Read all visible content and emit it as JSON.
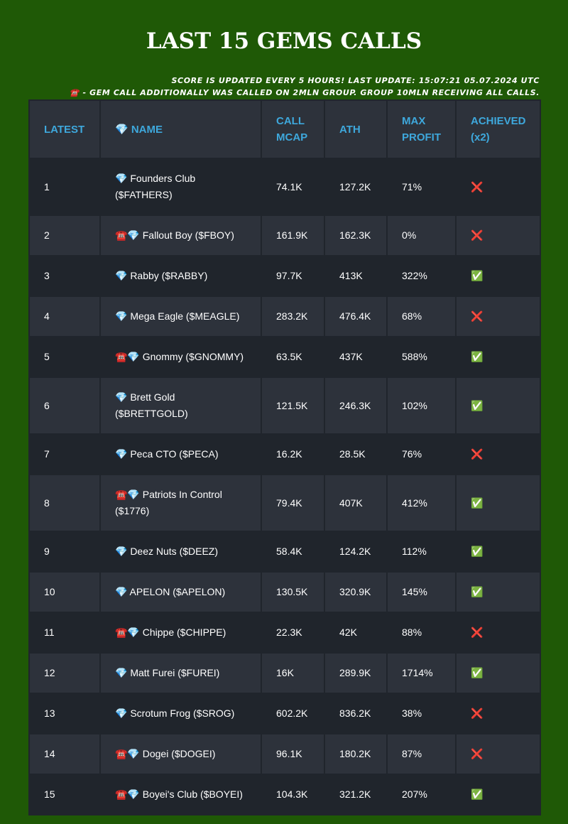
{
  "header": {
    "title": "LAST 15 GEMS CALLS",
    "notes": [
      "SCORE IS UPDATED EVERY 5 HOURS! LAST UPDATE: 15:07:21 05.07.2024 UTC",
      "☎️ - GEM CALL ADDITIONALLY WAS CALLED ON 2MLN GROUP. GROUP 10MLN RECEIVING ALL CALLS."
    ]
  },
  "table": {
    "columns": [
      "LATEST",
      "💎 NAME",
      "CALL MCAP",
      "ATH",
      "MAX PROFIT",
      "ACHIEVED (x2)"
    ],
    "rows": [
      [
        "1",
        "💎 Founders Club ($FATHERS)",
        "74.1K",
        "127.2K",
        "71%",
        "❌"
      ],
      [
        "2",
        "☎️💎 Fallout Boy ($FBOY)",
        "161.9K",
        "162.3K",
        "0%",
        "❌"
      ],
      [
        "3",
        "💎 Rabby ($RABBY)",
        "97.7K",
        "413K",
        "322%",
        "✅"
      ],
      [
        "4",
        "💎 Mega Eagle ($MEAGLE)",
        "283.2K",
        "476.4K",
        "68%",
        "❌"
      ],
      [
        "5",
        "☎️💎 Gnommy ($GNOMMY)",
        "63.5K",
        "437K",
        "588%",
        "✅"
      ],
      [
        "6",
        "💎 Brett Gold ($BRETTGOLD)",
        "121.5K",
        "246.3K",
        "102%",
        "✅"
      ],
      [
        "7",
        "💎 Peca CTO ($PECA)",
        "16.2K",
        "28.5K",
        "76%",
        "❌"
      ],
      [
        "8",
        "☎️💎 Patriots In Control ($1776)",
        "79.4K",
        "407K",
        "412%",
        "✅"
      ],
      [
        "9",
        "💎 Deez Nuts ($DEEZ)",
        "58.4K",
        "124.2K",
        "112%",
        "✅"
      ],
      [
        "10",
        "💎 APELON ($APELON)",
        "130.5K",
        "320.9K",
        "145%",
        "✅"
      ],
      [
        "11",
        "☎️💎 Chippe ($CHIPPE)",
        "22.3K",
        "42K",
        "88%",
        "❌"
      ],
      [
        "12",
        "💎 Matt Furei ($FUREI)",
        "16K",
        "289.9K",
        "1714%",
        "✅"
      ],
      [
        "13",
        "💎 Scrotum Frog ($SROG)",
        "602.2K",
        "836.2K",
        "38%",
        "❌"
      ],
      [
        "14",
        "☎️💎 Dogei ($DOGEI)",
        "96.1K",
        "180.2K",
        "87%",
        "❌"
      ],
      [
        "15",
        "☎️💎 Boyei's Club ($BOYEI)",
        "104.3K",
        "321.2K",
        "207%",
        "✅"
      ]
    ]
  }
}
